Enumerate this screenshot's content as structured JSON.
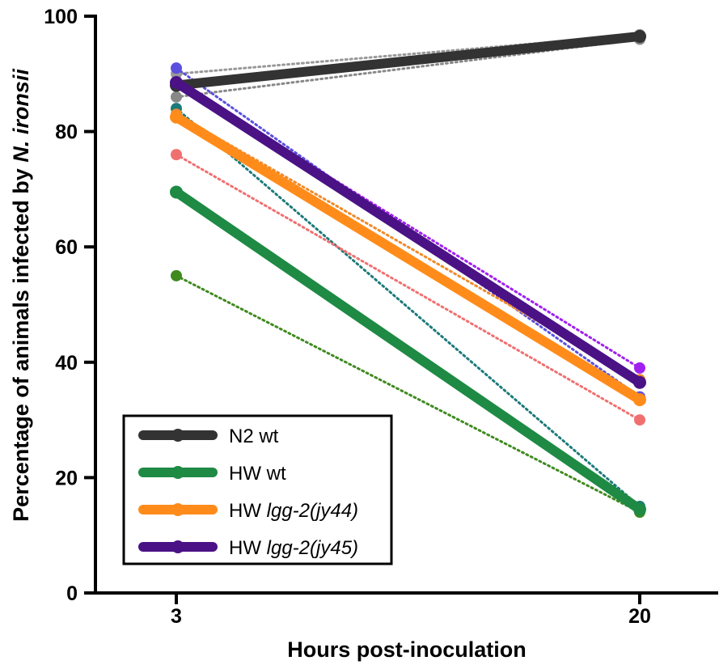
{
  "chart_data": {
    "type": "line",
    "xlabel": "Hours post-inoculation",
    "ylabel": "Percentage of animals infected by ",
    "ylabel_italic": "N. ironsii",
    "x": [
      3,
      20
    ],
    "x_ticks": [
      "3",
      "20"
    ],
    "y_ticks": [
      "0",
      "20",
      "40",
      "60",
      "80",
      "100"
    ],
    "ylim": [
      0,
      100
    ],
    "grid": false,
    "legend_position": "bottom-left",
    "series": [
      {
        "name": "N2 wt",
        "name_plain": "N2 wt",
        "name_italic": "",
        "color": "#333333",
        "values": [
          88,
          96.5
        ]
      },
      {
        "name": "HW wt",
        "name_plain": "HW wt",
        "name_italic": "",
        "color": "#1e8a44",
        "values": [
          69.5,
          14.5
        ]
      },
      {
        "name": "HW lgg-2(jy44)",
        "name_plain": "HW ",
        "name_italic": "lgg-2(jy44)",
        "color": "#ff8c1a",
        "values": [
          82.5,
          33.5
        ]
      },
      {
        "name": "HW lgg-2(jy45)",
        "name_plain": "HW ",
        "name_italic": "lgg-2(jy45)",
        "color": "#4b1286",
        "values": [
          88.5,
          36.5
        ]
      }
    ],
    "replicates": [
      {
        "color": "#999999",
        "values": [
          90,
          96.8
        ]
      },
      {
        "color": "#888888",
        "values": [
          86,
          96.0
        ]
      },
      {
        "color": "#5b4fe0",
        "values": [
          91,
          34
        ]
      },
      {
        "color": "#1c7a7a",
        "values": [
          84,
          15
        ]
      },
      {
        "color": "#f08a2a",
        "values": [
          83,
          37
        ]
      },
      {
        "color": "#a020f0",
        "values": [
          88.5,
          39
        ]
      },
      {
        "color": "#f07070",
        "values": [
          76,
          30
        ]
      },
      {
        "color": "#3f8a1f",
        "values": [
          55,
          14
        ]
      }
    ]
  }
}
